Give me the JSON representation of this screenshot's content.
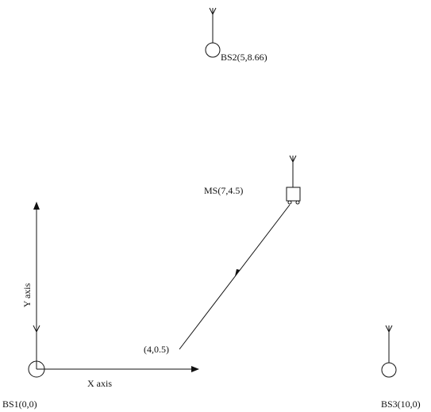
{
  "nodes": [
    {
      "label": "BS1(0,0)"
    },
    {
      "label": "BS2(5,8.66)"
    },
    {
      "label": "BS3(10,0)"
    },
    {
      "label": "MS(7,4.5)"
    }
  ],
  "points": [
    {
      "label": "(4,0.5)"
    }
  ],
  "axes": {
    "x": "X axis",
    "y": "Y axis"
  }
}
